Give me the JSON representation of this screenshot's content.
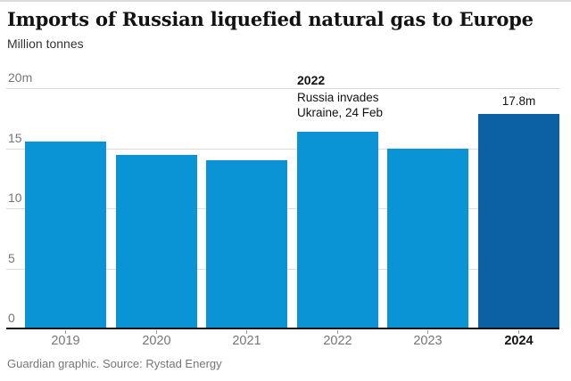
{
  "header": {
    "title": "Imports of Russian liquefied natural gas to Europe",
    "subtitle": "Million tonnes"
  },
  "chart_data": {
    "type": "bar",
    "title": "Imports of Russian liquefied natural gas to Europe",
    "ylabel": "Million tonnes",
    "xlabel": "",
    "categories": [
      "2019",
      "2020",
      "2021",
      "2022",
      "2023",
      "2024"
    ],
    "values": [
      15.5,
      14.4,
      13.9,
      16.3,
      14.9,
      17.8
    ],
    "unit": "million tonnes",
    "ylim": [
      0,
      20
    ],
    "yticks": [
      {
        "value": 20,
        "label": "20m"
      },
      {
        "value": 15,
        "label": "15"
      },
      {
        "value": 10,
        "label": "10"
      },
      {
        "value": 5,
        "label": "5"
      },
      {
        "value": 0,
        "label": "0"
      }
    ],
    "grid": "horizontal",
    "legend": "none",
    "colors": {
      "bar_default": "#0a94d5",
      "bar_highlight": "#0b61a4",
      "gridline": "#dcdcdc",
      "axis": "#121212",
      "muted_text": "#767676"
    },
    "highlight_category": "2024",
    "value_label": {
      "category": "2024",
      "text": "17.8m"
    },
    "annotation": {
      "year": "2022",
      "line1": "Russia invades",
      "line2": "Ukraine, 24 Feb"
    }
  },
  "footer": {
    "credit": "Guardian graphic. Source: Rystad Energy"
  }
}
